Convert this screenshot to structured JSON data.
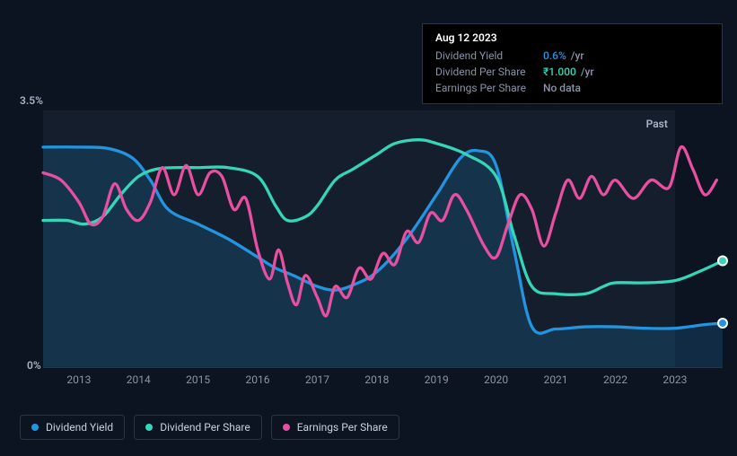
{
  "tooltip": {
    "date": "Aug 12 2023",
    "rows": [
      {
        "label": "Dividend Yield",
        "value": "0.6%",
        "unit": "/yr",
        "color": "#2394df"
      },
      {
        "label": "Dividend Per Share",
        "value": "₹1.000",
        "unit": "/yr",
        "color": "#35d6b7"
      },
      {
        "label": "Earnings Per Share",
        "value": "No data",
        "unit": "",
        "color": "#8a94a6"
      }
    ]
  },
  "chart": {
    "type": "line",
    "background_color": "#0d1421",
    "grid_color": "#2a3544",
    "label_color": "#a8b3c5",
    "tick_color": "#8a94a6",
    "label_fontsize": 12,
    "y_max_label": "3.5%",
    "y_min_label": "0%",
    "ylim": [
      0,
      3.5
    ],
    "x_labels": [
      "2013",
      "2014",
      "2015",
      "2016",
      "2017",
      "2018",
      "2019",
      "2020",
      "2021",
      "2022",
      "2023"
    ],
    "xlim": [
      2012.4,
      2023.8
    ],
    "past_band": {
      "from": 2012.4,
      "to": 2023.0,
      "color": "rgba(45,60,85,0.25)",
      "label": "Past"
    },
    "line_width": 2.5,
    "series": [
      {
        "name": "Dividend Yield",
        "color": "#2394df",
        "fill": "rgba(35,148,223,0.18)",
        "end_marker": true,
        "points": [
          [
            2012.4,
            3.0
          ],
          [
            2013.0,
            3.0
          ],
          [
            2013.5,
            2.98
          ],
          [
            2013.9,
            2.85
          ],
          [
            2014.2,
            2.55
          ],
          [
            2014.5,
            2.15
          ],
          [
            2015.0,
            1.95
          ],
          [
            2015.5,
            1.75
          ],
          [
            2016.0,
            1.5
          ],
          [
            2016.3,
            1.35
          ],
          [
            2016.6,
            1.25
          ],
          [
            2017.0,
            1.1
          ],
          [
            2017.3,
            1.05
          ],
          [
            2017.6,
            1.12
          ],
          [
            2018.0,
            1.3
          ],
          [
            2018.5,
            1.75
          ],
          [
            2019.0,
            2.35
          ],
          [
            2019.4,
            2.85
          ],
          [
            2019.7,
            2.95
          ],
          [
            2020.0,
            2.75
          ],
          [
            2020.3,
            1.6
          ],
          [
            2020.6,
            0.55
          ],
          [
            2021.0,
            0.52
          ],
          [
            2021.5,
            0.55
          ],
          [
            2022.0,
            0.55
          ],
          [
            2022.5,
            0.53
          ],
          [
            2023.0,
            0.53
          ],
          [
            2023.5,
            0.58
          ],
          [
            2023.8,
            0.6
          ]
        ]
      },
      {
        "name": "Dividend Per Share",
        "color": "#35d6b7",
        "fill": null,
        "end_marker": true,
        "points": [
          [
            2012.4,
            2.0
          ],
          [
            2012.8,
            2.0
          ],
          [
            2013.1,
            1.95
          ],
          [
            2013.4,
            2.05
          ],
          [
            2013.7,
            2.35
          ],
          [
            2014.0,
            2.6
          ],
          [
            2014.3,
            2.7
          ],
          [
            2014.6,
            2.72
          ],
          [
            2015.0,
            2.72
          ],
          [
            2015.5,
            2.72
          ],
          [
            2016.0,
            2.6
          ],
          [
            2016.3,
            2.2
          ],
          [
            2016.5,
            2.0
          ],
          [
            2016.8,
            2.05
          ],
          [
            2017.0,
            2.2
          ],
          [
            2017.3,
            2.55
          ],
          [
            2017.6,
            2.7
          ],
          [
            2018.0,
            2.9
          ],
          [
            2018.3,
            3.05
          ],
          [
            2018.7,
            3.1
          ],
          [
            2019.0,
            3.05
          ],
          [
            2019.5,
            2.9
          ],
          [
            2020.0,
            2.6
          ],
          [
            2020.3,
            1.8
          ],
          [
            2020.6,
            1.1
          ],
          [
            2021.0,
            1.0
          ],
          [
            2021.5,
            1.0
          ],
          [
            2021.8,
            1.1
          ],
          [
            2022.0,
            1.15
          ],
          [
            2022.5,
            1.15
          ],
          [
            2023.0,
            1.18
          ],
          [
            2023.4,
            1.3
          ],
          [
            2023.8,
            1.45
          ]
        ]
      },
      {
        "name": "Earnings Per Share",
        "color": "#e84fa0",
        "fill": null,
        "end_marker": false,
        "points": [
          [
            2012.4,
            2.65
          ],
          [
            2012.7,
            2.55
          ],
          [
            2013.0,
            2.25
          ],
          [
            2013.2,
            1.95
          ],
          [
            2013.4,
            2.05
          ],
          [
            2013.6,
            2.5
          ],
          [
            2013.8,
            2.15
          ],
          [
            2014.0,
            2.0
          ],
          [
            2014.2,
            2.25
          ],
          [
            2014.4,
            2.72
          ],
          [
            2014.6,
            2.35
          ],
          [
            2014.8,
            2.75
          ],
          [
            2015.0,
            2.35
          ],
          [
            2015.2,
            2.65
          ],
          [
            2015.4,
            2.6
          ],
          [
            2015.6,
            2.15
          ],
          [
            2015.8,
            2.3
          ],
          [
            2016.0,
            1.6
          ],
          [
            2016.2,
            1.2
          ],
          [
            2016.35,
            1.6
          ],
          [
            2016.5,
            1.15
          ],
          [
            2016.65,
            0.85
          ],
          [
            2016.8,
            1.25
          ],
          [
            2017.0,
            0.95
          ],
          [
            2017.15,
            0.7
          ],
          [
            2017.3,
            1.1
          ],
          [
            2017.5,
            0.95
          ],
          [
            2017.7,
            1.35
          ],
          [
            2017.9,
            1.2
          ],
          [
            2018.1,
            1.55
          ],
          [
            2018.3,
            1.4
          ],
          [
            2018.5,
            1.85
          ],
          [
            2018.7,
            1.7
          ],
          [
            2018.9,
            2.1
          ],
          [
            2019.1,
            2.0
          ],
          [
            2019.3,
            2.35
          ],
          [
            2019.5,
            2.15
          ],
          [
            2019.8,
            1.65
          ],
          [
            2020.0,
            1.5
          ],
          [
            2020.2,
            1.95
          ],
          [
            2020.4,
            2.35
          ],
          [
            2020.6,
            2.15
          ],
          [
            2020.8,
            1.65
          ],
          [
            2021.0,
            2.1
          ],
          [
            2021.2,
            2.55
          ],
          [
            2021.4,
            2.3
          ],
          [
            2021.6,
            2.6
          ],
          [
            2021.8,
            2.35
          ],
          [
            2022.0,
            2.55
          ],
          [
            2022.3,
            2.3
          ],
          [
            2022.6,
            2.55
          ],
          [
            2022.9,
            2.45
          ],
          [
            2023.1,
            3.0
          ],
          [
            2023.3,
            2.7
          ],
          [
            2023.5,
            2.35
          ],
          [
            2023.7,
            2.55
          ]
        ]
      }
    ]
  },
  "legend": {
    "items": [
      {
        "label": "Dividend Yield",
        "color": "#2394df"
      },
      {
        "label": "Dividend Per Share",
        "color": "#35d6b7"
      },
      {
        "label": "Earnings Per Share",
        "color": "#e84fa0"
      }
    ]
  }
}
